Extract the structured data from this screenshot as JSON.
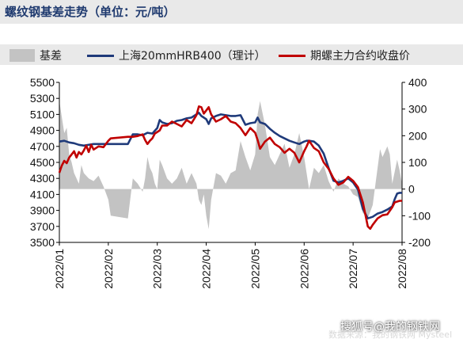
{
  "title": "螺纹钢基差走势（单位：元/吨）",
  "watermark": "搜狐号@我的钢铁网",
  "watermark_faint": "数据来源：我的钢铁网 Mysteel",
  "colors": {
    "basis": "#c3c3c3",
    "spot": "#1f3a7a",
    "futures": "#c00000",
    "title": "#1f3a6f"
  },
  "chart_data": {
    "type": "line",
    "legend_position": "top",
    "grid": false,
    "x_ticks": [
      "2022/01",
      "2022/02",
      "2022/03",
      "2022/04",
      "2022/05",
      "2022/06",
      "2022/07",
      "2022/08"
    ],
    "x_range": [
      0,
      7
    ],
    "y_left": {
      "range": [
        3500,
        5500
      ],
      "ticks": [
        3500,
        3700,
        3900,
        4100,
        4300,
        4500,
        4700,
        4900,
        5100,
        5300,
        5500
      ]
    },
    "y_right": {
      "range": [
        -200,
        400
      ],
      "ticks": [
        -200,
        -100,
        0,
        100,
        200,
        300,
        400
      ]
    },
    "series": [
      {
        "name": "基差",
        "type": "area",
        "axis": "right",
        "points": [
          [
            0.0,
            330
          ],
          [
            0.05,
            270
          ],
          [
            0.1,
            210
          ],
          [
            0.15,
            230
          ],
          [
            0.2,
            130
          ],
          [
            0.25,
            100
          ],
          [
            0.3,
            60
          ],
          [
            0.4,
            20
          ],
          [
            0.45,
            90
          ],
          [
            0.5,
            60
          ],
          [
            0.6,
            40
          ],
          [
            0.7,
            30
          ],
          [
            0.8,
            50
          ],
          [
            0.9,
            10
          ],
          [
            1.0,
            -40
          ],
          [
            1.05,
            -100
          ],
          [
            1.4,
            -110
          ],
          [
            1.5,
            40
          ],
          [
            1.6,
            20
          ],
          [
            1.7,
            -10
          ],
          [
            1.75,
            40
          ],
          [
            1.8,
            120
          ],
          [
            1.85,
            80
          ],
          [
            1.9,
            60
          ],
          [
            1.95,
            20
          ],
          [
            2.0,
            0
          ],
          [
            2.05,
            110
          ],
          [
            2.1,
            90
          ],
          [
            2.2,
            40
          ],
          [
            2.3,
            20
          ],
          [
            2.4,
            40
          ],
          [
            2.5,
            80
          ],
          [
            2.6,
            20
          ],
          [
            2.7,
            60
          ],
          [
            2.8,
            20
          ],
          [
            2.85,
            -40
          ],
          [
            2.9,
            -60
          ],
          [
            2.95,
            -20
          ],
          [
            3.0,
            -100
          ],
          [
            3.05,
            -150
          ],
          [
            3.1,
            -40
          ],
          [
            3.2,
            60
          ],
          [
            3.3,
            50
          ],
          [
            3.4,
            20
          ],
          [
            3.5,
            60
          ],
          [
            3.6,
            70
          ],
          [
            3.7,
            180
          ],
          [
            3.8,
            120
          ],
          [
            3.9,
            70
          ],
          [
            4.0,
            130
          ],
          [
            4.05,
            280
          ],
          [
            4.1,
            330
          ],
          [
            4.2,
            240
          ],
          [
            4.3,
            120
          ],
          [
            4.4,
            90
          ],
          [
            4.5,
            130
          ],
          [
            4.6,
            170
          ],
          [
            4.7,
            80
          ],
          [
            4.8,
            130
          ],
          [
            4.9,
            210
          ],
          [
            5.0,
            120
          ],
          [
            5.05,
            60
          ],
          [
            5.1,
            0
          ],
          [
            5.2,
            80
          ],
          [
            5.3,
            60
          ],
          [
            5.4,
            90
          ],
          [
            5.5,
            30
          ],
          [
            5.6,
            -10
          ],
          [
            5.7,
            40
          ],
          [
            5.8,
            20
          ],
          [
            5.9,
            10
          ],
          [
            6.0,
            -20
          ],
          [
            6.1,
            -30
          ],
          [
            6.2,
            -90
          ],
          [
            6.3,
            -110
          ],
          [
            6.4,
            -60
          ],
          [
            6.5,
            80
          ],
          [
            6.55,
            150
          ],
          [
            6.6,
            120
          ],
          [
            6.7,
            160
          ],
          [
            6.75,
            130
          ],
          [
            6.8,
            20
          ],
          [
            6.9,
            110
          ],
          [
            6.95,
            70
          ],
          [
            7.0,
            20
          ]
        ]
      },
      {
        "name": "上海20mmHRB400（理计）",
        "type": "line",
        "axis": "left",
        "points": [
          [
            0.0,
            4760
          ],
          [
            0.1,
            4770
          ],
          [
            0.2,
            4750
          ],
          [
            0.3,
            4740
          ],
          [
            0.4,
            4720
          ],
          [
            0.5,
            4710
          ],
          [
            0.6,
            4720
          ],
          [
            0.7,
            4730
          ],
          [
            0.8,
            4730
          ],
          [
            0.9,
            4730
          ],
          [
            1.0,
            4730
          ],
          [
            1.05,
            4730
          ],
          [
            1.1,
            4730
          ],
          [
            1.2,
            4730
          ],
          [
            1.3,
            4730
          ],
          [
            1.4,
            4730
          ],
          [
            1.5,
            4850
          ],
          [
            1.6,
            4850
          ],
          [
            1.7,
            4840
          ],
          [
            1.8,
            4870
          ],
          [
            1.9,
            4860
          ],
          [
            2.0,
            4930
          ],
          [
            2.05,
            5030
          ],
          [
            2.1,
            5000
          ],
          [
            2.2,
            4980
          ],
          [
            2.3,
            4990
          ],
          [
            2.4,
            5020
          ],
          [
            2.5,
            5030
          ],
          [
            2.6,
            5050
          ],
          [
            2.7,
            5060
          ],
          [
            2.8,
            5100
          ],
          [
            2.85,
            5120
          ],
          [
            2.9,
            5080
          ],
          [
            2.95,
            5060
          ],
          [
            3.0,
            5040
          ],
          [
            3.05,
            4980
          ],
          [
            3.1,
            5050
          ],
          [
            3.2,
            5080
          ],
          [
            3.3,
            5100
          ],
          [
            3.4,
            5090
          ],
          [
            3.5,
            5080
          ],
          [
            3.6,
            5080
          ],
          [
            3.7,
            5090
          ],
          [
            3.8,
            4970
          ],
          [
            3.9,
            4990
          ],
          [
            4.0,
            5000
          ],
          [
            4.05,
            5060
          ],
          [
            4.1,
            5000
          ],
          [
            4.2,
            4980
          ],
          [
            4.3,
            4920
          ],
          [
            4.4,
            4870
          ],
          [
            4.5,
            4830
          ],
          [
            4.6,
            4800
          ],
          [
            4.7,
            4770
          ],
          [
            4.8,
            4750
          ],
          [
            4.9,
            4730
          ],
          [
            5.0,
            4760
          ],
          [
            5.05,
            4770
          ],
          [
            5.1,
            4770
          ],
          [
            5.2,
            4760
          ],
          [
            5.3,
            4710
          ],
          [
            5.4,
            4610
          ],
          [
            5.5,
            4430
          ],
          [
            5.6,
            4270
          ],
          [
            5.7,
            4250
          ],
          [
            5.8,
            4270
          ],
          [
            5.9,
            4300
          ],
          [
            6.0,
            4250
          ],
          [
            6.1,
            4160
          ],
          [
            6.2,
            3920
          ],
          [
            6.3,
            3800
          ],
          [
            6.4,
            3820
          ],
          [
            6.5,
            3860
          ],
          [
            6.6,
            3880
          ],
          [
            6.7,
            3910
          ],
          [
            6.8,
            3950
          ],
          [
            6.85,
            4040
          ],
          [
            6.9,
            4110
          ],
          [
            6.95,
            4120
          ],
          [
            7.0,
            4120
          ]
        ]
      },
      {
        "name": "期螺主力合约收盘价",
        "type": "line",
        "axis": "left",
        "points": [
          [
            0.0,
            4370
          ],
          [
            0.05,
            4460
          ],
          [
            0.1,
            4520
          ],
          [
            0.15,
            4490
          ],
          [
            0.2,
            4560
          ],
          [
            0.25,
            4600
          ],
          [
            0.3,
            4640
          ],
          [
            0.35,
            4560
          ],
          [
            0.4,
            4630
          ],
          [
            0.45,
            4600
          ],
          [
            0.5,
            4650
          ],
          [
            0.55,
            4710
          ],
          [
            0.6,
            4630
          ],
          [
            0.65,
            4720
          ],
          [
            0.7,
            4660
          ],
          [
            0.8,
            4700
          ],
          [
            0.9,
            4690
          ],
          [
            1.0,
            4770
          ],
          [
            1.05,
            4800
          ],
          [
            1.4,
            4820
          ],
          [
            1.5,
            4820
          ],
          [
            1.6,
            4830
          ],
          [
            1.7,
            4850
          ],
          [
            1.75,
            4780
          ],
          [
            1.8,
            4730
          ],
          [
            1.85,
            4770
          ],
          [
            1.9,
            4800
          ],
          [
            1.95,
            4860
          ],
          [
            2.0,
            4880
          ],
          [
            2.05,
            4900
          ],
          [
            2.1,
            4960
          ],
          [
            2.2,
            4960
          ],
          [
            2.3,
            5010
          ],
          [
            2.4,
            4980
          ],
          [
            2.5,
            4950
          ],
          [
            2.6,
            5030
          ],
          [
            2.7,
            4990
          ],
          [
            2.8,
            5090
          ],
          [
            2.85,
            5200
          ],
          [
            2.9,
            5190
          ],
          [
            2.95,
            5110
          ],
          [
            3.0,
            5150
          ],
          [
            3.05,
            5190
          ],
          [
            3.1,
            5100
          ],
          [
            3.2,
            5010
          ],
          [
            3.3,
            5040
          ],
          [
            3.4,
            5080
          ],
          [
            3.5,
            5010
          ],
          [
            3.6,
            4990
          ],
          [
            3.7,
            4930
          ],
          [
            3.8,
            4840
          ],
          [
            3.9,
            4930
          ],
          [
            4.0,
            4870
          ],
          [
            4.05,
            4780
          ],
          [
            4.1,
            4670
          ],
          [
            4.2,
            4760
          ],
          [
            4.3,
            4810
          ],
          [
            4.4,
            4730
          ],
          [
            4.5,
            4690
          ],
          [
            4.6,
            4620
          ],
          [
            4.7,
            4670
          ],
          [
            4.8,
            4620
          ],
          [
            4.9,
            4500
          ],
          [
            5.0,
            4640
          ],
          [
            5.05,
            4700
          ],
          [
            5.1,
            4770
          ],
          [
            5.2,
            4680
          ],
          [
            5.3,
            4640
          ],
          [
            5.4,
            4500
          ],
          [
            5.5,
            4420
          ],
          [
            5.6,
            4300
          ],
          [
            5.7,
            4220
          ],
          [
            5.8,
            4250
          ],
          [
            5.9,
            4320
          ],
          [
            6.0,
            4270
          ],
          [
            6.1,
            4190
          ],
          [
            6.2,
            4000
          ],
          [
            6.25,
            3850
          ],
          [
            6.3,
            3700
          ],
          [
            6.35,
            3670
          ],
          [
            6.4,
            3720
          ],
          [
            6.5,
            3800
          ],
          [
            6.6,
            3840
          ],
          [
            6.7,
            3850
          ],
          [
            6.8,
            3940
          ],
          [
            6.85,
            4000
          ],
          [
            6.9,
            4010
          ],
          [
            6.95,
            4020
          ],
          [
            7.0,
            4020
          ]
        ]
      }
    ]
  }
}
